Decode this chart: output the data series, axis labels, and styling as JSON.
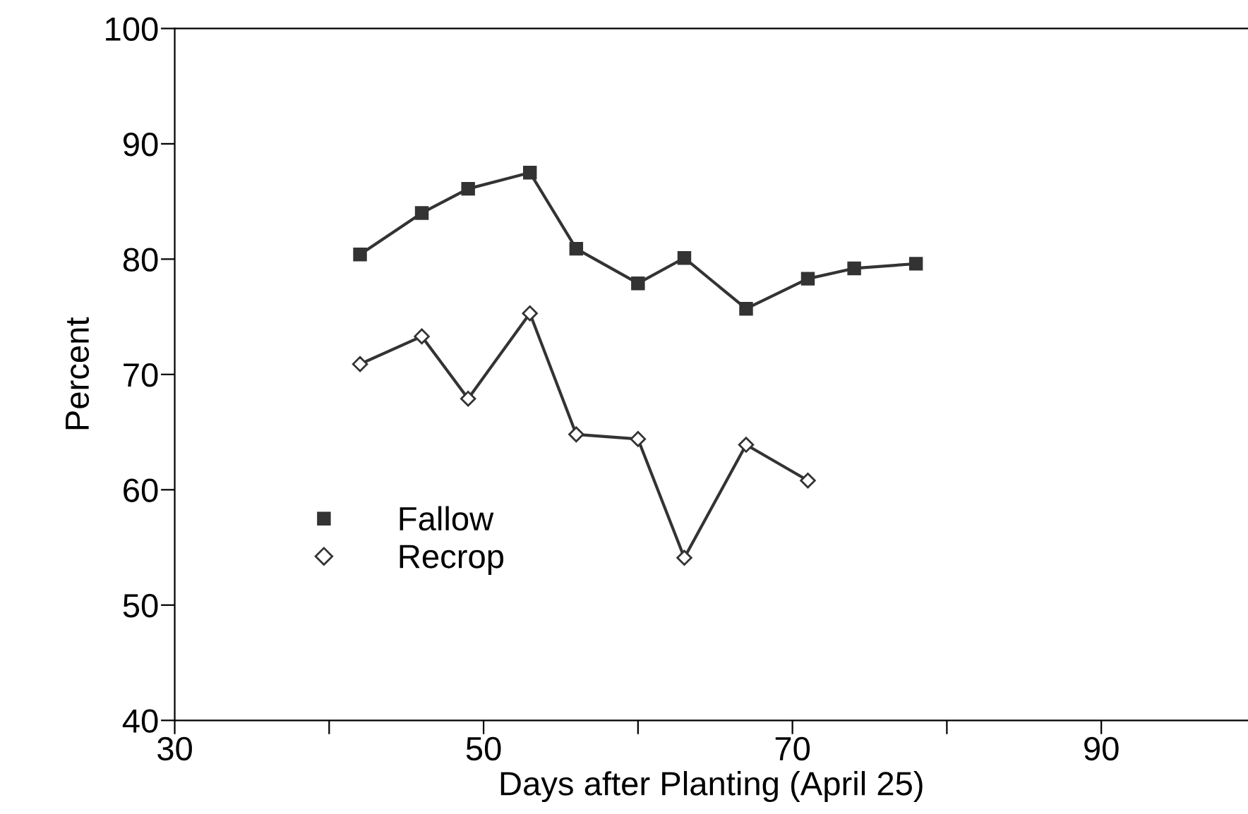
{
  "chart_data": {
    "type": "line",
    "xlabel": "Days after Planting (April 25)",
    "ylabel": "Percent",
    "series": [
      {
        "name": "Fallow",
        "color": "#333333",
        "marker": "square",
        "x": [
          42,
          46,
          49,
          53,
          56,
          60,
          63,
          67,
          71,
          74,
          78
        ],
        "values": [
          80.4,
          84.0,
          86.1,
          87.5,
          80.9,
          77.9,
          80.1,
          75.7,
          78.3,
          79.2,
          79.6
        ]
      },
      {
        "name": "Recrop",
        "color": "#333333",
        "marker": "diamond",
        "x": [
          42,
          46,
          49,
          53,
          56,
          60,
          63,
          67,
          71
        ],
        "values": [
          70.9,
          73.3,
          67.9,
          75.3,
          64.8,
          64.4,
          54.1,
          63.9,
          60.8
        ]
      }
    ],
    "xlim": [
      30,
      99.5
    ],
    "xticks": [
      30,
      {
        "value": 40,
        "label": null
      },
      50,
      {
        "value": 60,
        "label": null
      },
      70,
      {
        "value": 80,
        "label": null
      },
      90
    ],
    "ylim": [
      40,
      100
    ],
    "yticks": [
      40,
      50,
      60,
      70,
      80,
      90,
      100
    ],
    "grid": false,
    "legend": "left",
    "line_style": "solid"
  }
}
